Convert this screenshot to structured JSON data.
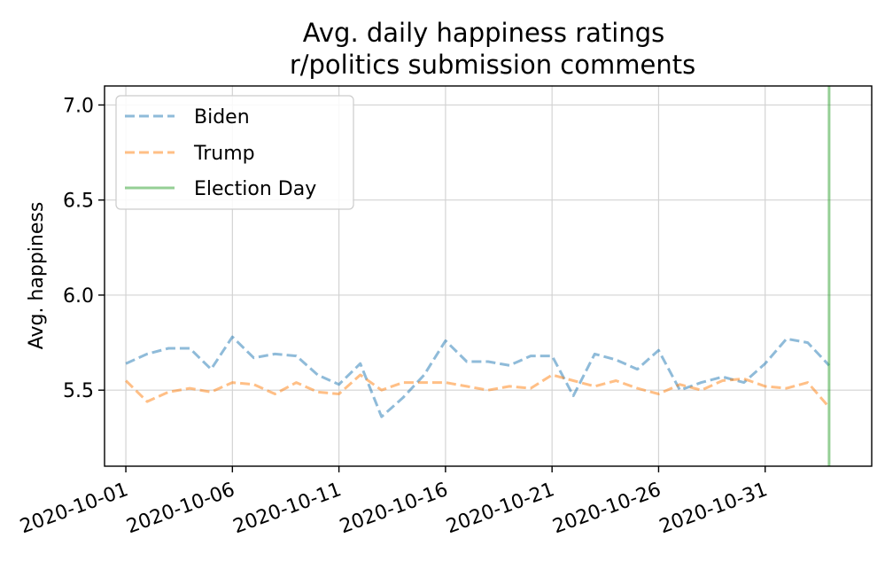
{
  "chart_data": {
    "type": "line",
    "title": "Avg. daily happiness ratings",
    "subtitle": "r/politics submission comments",
    "xlabel": "",
    "ylabel": "Avg. happiness",
    "x_start": "2020-09-30",
    "x_end": "2020-11-05",
    "ylim": [
      5.1,
      7.1
    ],
    "yticks": [
      5.5,
      6.0,
      6.5,
      7.0
    ],
    "ytick_labels": [
      "5.5",
      "6.0",
      "6.5",
      "7.0"
    ],
    "xticks": [
      "2020-10-01",
      "2020-10-06",
      "2020-10-11",
      "2020-10-16",
      "2020-10-21",
      "2020-10-26",
      "2020-10-31"
    ],
    "grid": true,
    "legend_position": "upper-left",
    "x": [
      "2020-10-01",
      "2020-10-02",
      "2020-10-03",
      "2020-10-04",
      "2020-10-05",
      "2020-10-06",
      "2020-10-07",
      "2020-10-08",
      "2020-10-09",
      "2020-10-10",
      "2020-10-11",
      "2020-10-12",
      "2020-10-13",
      "2020-10-14",
      "2020-10-15",
      "2020-10-16",
      "2020-10-17",
      "2020-10-18",
      "2020-10-19",
      "2020-10-20",
      "2020-10-21",
      "2020-10-22",
      "2020-10-23",
      "2020-10-24",
      "2020-10-25",
      "2020-10-26",
      "2020-10-27",
      "2020-10-28",
      "2020-10-29",
      "2020-10-30",
      "2020-10-31",
      "2020-11-01",
      "2020-11-02",
      "2020-11-03"
    ],
    "series": [
      {
        "name": "Biden",
        "color": "#1f77b4",
        "style": "dashed",
        "values": [
          5.64,
          5.69,
          5.72,
          5.72,
          5.61,
          5.78,
          5.67,
          5.69,
          5.68,
          5.58,
          5.53,
          5.64,
          5.36,
          5.46,
          5.58,
          5.76,
          5.65,
          5.65,
          5.63,
          5.68,
          5.68,
          5.47,
          5.69,
          5.66,
          5.61,
          5.71,
          5.5,
          5.54,
          5.57,
          5.54,
          5.64,
          5.77,
          5.75,
          5.63
        ]
      },
      {
        "name": "Trump",
        "color": "#ff7f0e",
        "style": "dashed",
        "values": [
          5.55,
          5.44,
          5.49,
          5.51,
          5.49,
          5.54,
          5.53,
          5.48,
          5.54,
          5.49,
          5.48,
          5.58,
          5.5,
          5.54,
          5.54,
          5.54,
          5.52,
          5.5,
          5.52,
          5.51,
          5.58,
          5.55,
          5.52,
          5.55,
          5.51,
          5.48,
          5.53,
          5.5,
          5.55,
          5.56,
          5.52,
          5.51,
          5.54,
          5.41
        ]
      }
    ],
    "vline": {
      "name": "Election Day",
      "x": "2020-11-03",
      "color": "#2ca02c"
    }
  }
}
